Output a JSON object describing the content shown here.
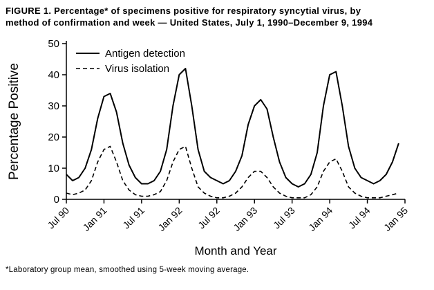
{
  "figure": {
    "title_line1": "FIGURE 1. Percentage* of specimens positive for respiratory syncytial virus, by",
    "title_line2": "method of confirmation and week — United States, July 1, 1990–December 9, 1994",
    "footnote": "*Laboratory group mean, smoothed using 5-week moving average."
  },
  "colors": {
    "line": "#000000",
    "background": "#ffffff",
    "text": "#000000"
  },
  "chart_data": {
    "type": "line",
    "title": "",
    "xlabel": "Month and Year",
    "ylabel": "Percentage Positive",
    "ylim": [
      0,
      50
    ],
    "yticks": [
      0,
      10,
      20,
      30,
      40,
      50
    ],
    "xticklabels": [
      "Jul 90",
      "Jan 91",
      "Jul 91",
      "Jan 92",
      "Jul 92",
      "Jan 93",
      "Jul 93",
      "Jan 94",
      "Jul 94",
      "Jan 95"
    ],
    "x_extent_months": 54,
    "grid": false,
    "legend_position": "top-left",
    "x_months": [
      "Jul 90",
      "Aug 90",
      "Sep 90",
      "Oct 90",
      "Nov 90",
      "Dec 90",
      "Jan 91",
      "Feb 91",
      "Mar 91",
      "Apr 91",
      "May 91",
      "Jun 91",
      "Jul 91",
      "Aug 91",
      "Sep 91",
      "Oct 91",
      "Nov 91",
      "Dec 91",
      "Jan 92",
      "Feb 92",
      "Mar 92",
      "Apr 92",
      "May 92",
      "Jun 92",
      "Jul 92",
      "Aug 92",
      "Sep 92",
      "Oct 92",
      "Nov 92",
      "Dec 92",
      "Jan 93",
      "Feb 93",
      "Mar 93",
      "Apr 93",
      "May 93",
      "Jun 93",
      "Jul 93",
      "Aug 93",
      "Sep 93",
      "Oct 93",
      "Nov 93",
      "Dec 93",
      "Jan 94",
      "Feb 94",
      "Mar 94",
      "Apr 94",
      "May 94",
      "Jun 94",
      "Jul 94",
      "Aug 94",
      "Sep 94",
      "Oct 94",
      "Nov 94",
      "Dec 94"
    ],
    "series": [
      {
        "name": "Antigen detection",
        "style": "solid",
        "values": [
          8,
          6,
          7,
          10,
          16,
          26,
          33,
          34,
          28,
          18,
          11,
          7,
          5,
          5,
          6,
          9,
          16,
          30,
          40,
          42,
          30,
          16,
          9,
          7,
          6,
          5,
          6,
          9,
          14,
          24,
          30,
          32,
          29,
          20,
          12,
          7,
          5,
          4,
          5,
          8,
          15,
          30,
          40,
          41,
          30,
          17,
          10,
          7,
          6,
          5,
          6,
          8,
          12,
          18
        ]
      },
      {
        "name": "Virus isolation",
        "style": "dashed",
        "values": [
          2,
          1.5,
          2,
          3,
          6,
          12,
          16,
          17,
          12,
          6,
          3,
          1.5,
          1,
          1,
          1.5,
          2.5,
          6,
          12,
          16,
          17,
          10,
          4,
          2,
          1,
          0.5,
          0.5,
          1,
          2,
          4,
          7,
          9,
          9,
          7,
          4,
          2,
          1,
          0.5,
          0.5,
          0.5,
          1.5,
          4,
          9,
          12,
          13,
          9,
          4,
          2,
          1,
          0.5,
          0.5,
          0.5,
          1,
          1.5,
          2
        ]
      }
    ]
  }
}
